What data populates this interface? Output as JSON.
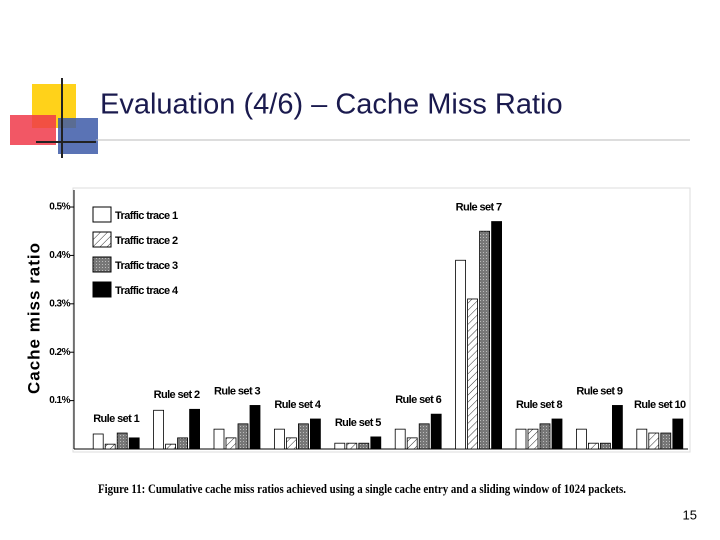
{
  "slide": {
    "title": "Evaluation (4/6) – Cache Miss Ratio",
    "page_number": "15"
  },
  "chart_data": {
    "type": "bar",
    "ylabel": "Cache miss ratio",
    "caption": "Figure 11: Cumulative cache miss ratios achieved using a single cache entry and a sliding window of 1024 packets.",
    "categories": [
      "Rule set 1",
      "Rule set 2",
      "Rule set 3",
      "Rule set 4",
      "Rule set 5",
      "Rule set 6",
      "Rule set 7",
      "Rule set 8",
      "Rule set 9",
      "Rule set 10"
    ],
    "series": [
      {
        "name": "Traffic trace 1",
        "color": "#ffffff",
        "pattern": "solid",
        "values": [
          0.031,
          0.08,
          0.041,
          0.041,
          0.012,
          0.041,
          0.39,
          0.041,
          0.041,
          0.041
        ]
      },
      {
        "name": "Traffic trace 2",
        "color": "#ffffff",
        "pattern": "hatch",
        "values": [
          0.01,
          0.01,
          0.023,
          0.023,
          0.012,
          0.023,
          0.31,
          0.041,
          0.012,
          0.033
        ]
      },
      {
        "name": "Traffic trace 3",
        "color": "#888888",
        "pattern": "dots",
        "values": [
          0.033,
          0.023,
          0.052,
          0.052,
          0.012,
          0.052,
          0.45,
          0.052,
          0.012,
          0.033
        ]
      },
      {
        "name": "Traffic trace 4",
        "color": "#000000",
        "pattern": "solid",
        "values": [
          0.023,
          0.082,
          0.09,
          0.062,
          0.025,
          0.072,
          0.47,
          0.062,
          0.09,
          0.062
        ]
      }
    ],
    "ylim": [
      0,
      0.53
    ],
    "yticks": [
      {
        "value": 0.1,
        "label": "0.1%"
      },
      {
        "value": 0.2,
        "label": "0.2%"
      },
      {
        "value": 0.3,
        "label": "0.3%"
      },
      {
        "value": 0.4,
        "label": "0.4%"
      },
      {
        "value": 0.5,
        "label": "0.5%"
      }
    ],
    "legend": "upper left"
  }
}
